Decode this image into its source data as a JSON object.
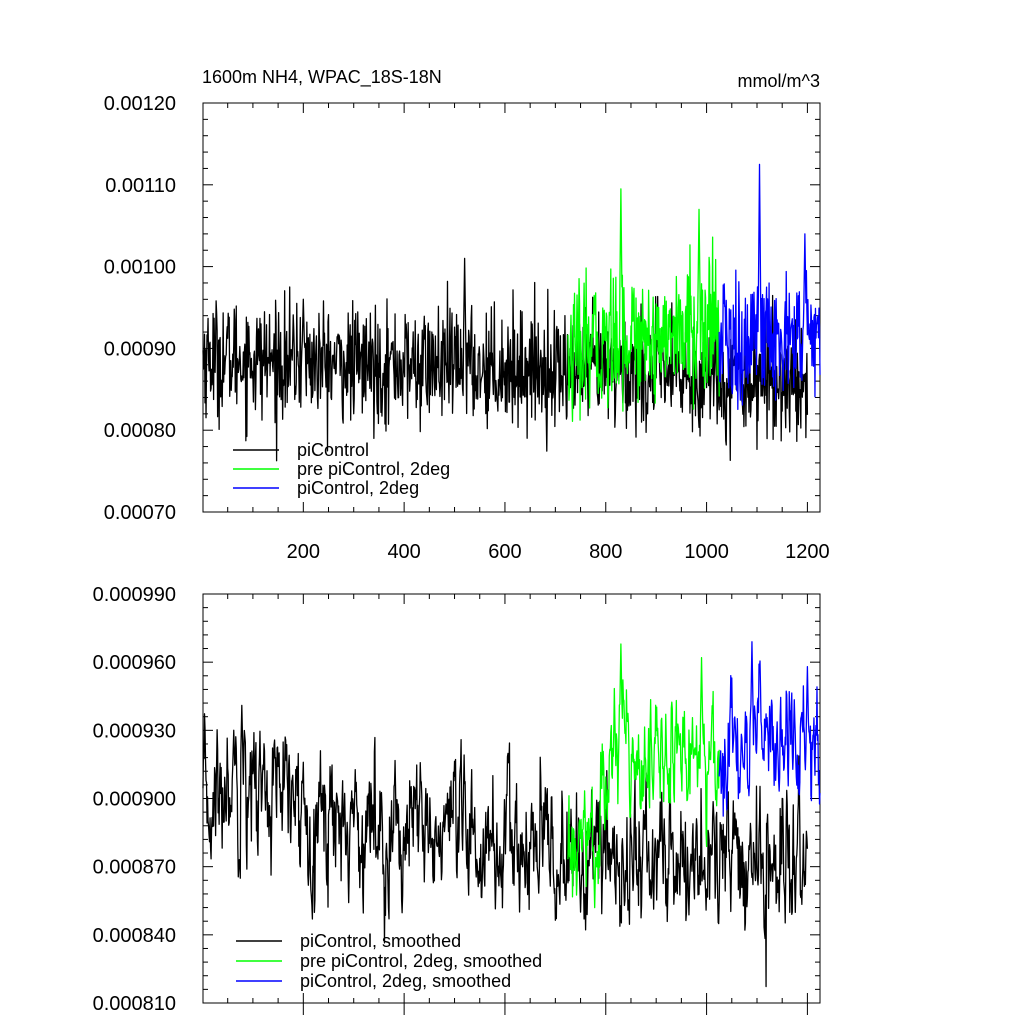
{
  "chart_data": [
    {
      "type": "line",
      "title_left": "1600m NH4, WPAC_18S-18N",
      "title_right": "mmol/m^3",
      "xlim": [
        1,
        1225
      ],
      "ylim": [
        0.0007,
        0.0012
      ],
      "x_ticks": [
        200,
        400,
        600,
        800,
        1000,
        1200
      ],
      "x_tick_labels": [
        "200",
        "400",
        "600",
        "800",
        "1000",
        "1200"
      ],
      "y_ticks": [
        0.0007,
        0.0008,
        0.0009,
        0.001,
        0.0011,
        0.0012
      ],
      "y_tick_labels": [
        "0.00070",
        "0.00080",
        "0.00090",
        "0.00100",
        "0.00110",
        "0.00120"
      ],
      "legend": "bottom-left",
      "series": [
        {
          "name": "piControl",
          "color": "#000000",
          "x_range": [
            1,
            1200
          ],
          "profile": [
            [
              1,
              0.00089
            ],
            [
              300,
              0.00088
            ],
            [
              700,
              0.000875
            ],
            [
              1200,
              0.00086
            ]
          ],
          "noise_std": 3.5e-05,
          "spikes": [
            [
              520,
              0.00101
            ],
            [
              200,
              0.00096
            ]
          ]
        },
        {
          "name": "pre piControl, 2deg",
          "color": "#00ff00",
          "x_range": [
            725,
            1025
          ],
          "profile": [
            [
              725,
              0.000885
            ],
            [
              820,
              0.000915
            ],
            [
              1025,
              0.00092
            ]
          ],
          "noise_std": 4e-05,
          "spikes": [
            [
              830,
              0.001095
            ],
            [
              985,
              0.00107
            ]
          ]
        },
        {
          "name": "piControl, 2deg",
          "color": "#0000ff",
          "x_range": [
            1025,
            1225
          ],
          "profile": [
            [
              1025,
              0.000905
            ],
            [
              1225,
              0.000915
            ]
          ],
          "noise_std": 4e-05,
          "spikes": [
            [
              1105,
              0.001125
            ],
            [
              1195,
              0.00104
            ]
          ]
        }
      ]
    },
    {
      "type": "line",
      "xlim": [
        1,
        1225
      ],
      "ylim": [
        0.00081,
        0.00099
      ],
      "x_ticks": [
        200,
        400,
        600,
        800,
        1000,
        1200
      ],
      "y_ticks": [
        0.00081,
        0.00084,
        0.00087,
        0.0009,
        0.00093,
        0.00096,
        0.00099
      ],
      "y_tick_labels": [
        "0.000810",
        "0.000840",
        "0.000870",
        "0.000900",
        "0.000930",
        "0.000960",
        "0.000990"
      ],
      "legend": "bottom-left",
      "series": [
        {
          "name": "piControl, smoothed",
          "color": "#000000",
          "x_range": [
            1,
            1200
          ],
          "profile": [
            [
              1,
              0.000895
            ],
            [
              80,
              0.00091
            ],
            [
              200,
              0.000895
            ],
            [
              400,
              0.000885
            ],
            [
              700,
              0.000875
            ],
            [
              1200,
              0.00087
            ]
          ],
          "noise_std": 1.4e-05,
          "spikes": [
            [
              78,
              0.000941
            ],
            [
              62,
              0.00093
            ],
            [
              750,
              0.00085
            ]
          ]
        },
        {
          "name": "pre piControl, 2deg, smoothed",
          "color": "#00ff00",
          "x_range": [
            725,
            1025
          ],
          "profile": [
            [
              725,
              0.00087
            ],
            [
              780,
              0.000885
            ],
            [
              830,
              0.00093
            ],
            [
              900,
              0.000915
            ],
            [
              1025,
              0.000925
            ]
          ],
          "noise_std": 1.2e-05,
          "spikes": [
            [
              830,
              0.000968
            ],
            [
              990,
              0.000962
            ],
            [
              778,
              0.000852
            ]
          ]
        },
        {
          "name": "piControl, 2deg, smoothed",
          "color": "#0000ff",
          "x_range": [
            1025,
            1225
          ],
          "profile": [
            [
              1025,
              0.000915
            ],
            [
              1100,
              0.00093
            ],
            [
              1225,
              0.00092
            ]
          ],
          "noise_std": 1.2e-05,
          "spikes": [
            [
              1090,
              0.000969
            ],
            [
              1200,
              0.000958
            ],
            [
              1040,
              0.000895
            ]
          ]
        }
      ]
    }
  ]
}
